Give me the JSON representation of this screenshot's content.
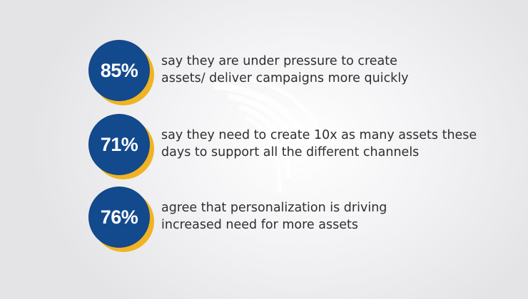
{
  "stats": [
    {
      "value": "85%",
      "line1": "say they are under pressure to create",
      "line2": "assets/ deliver campaigns more quickly"
    },
    {
      "value": "71%",
      "line1": "say they need to create 10x as many assets these",
      "line2": "days to support all the different channels"
    },
    {
      "value": "76%",
      "line1": "agree that personalization is driving",
      "line2": "increased need for more assets"
    }
  ],
  "colors": {
    "badge_fill": "#134a8e",
    "badge_ring": "#f0b323",
    "text": "#2e2e2e",
    "background": "#f4f4f6"
  }
}
